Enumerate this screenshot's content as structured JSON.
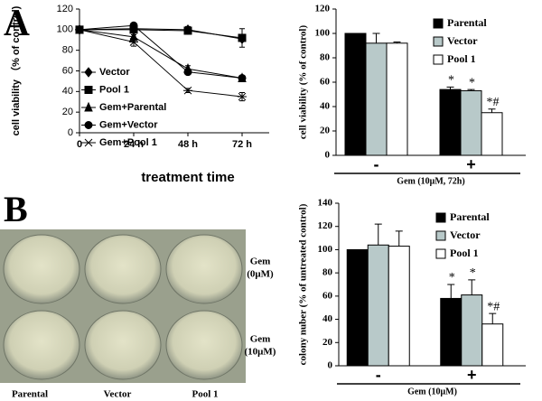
{
  "panel_labels": [
    "A",
    "B"
  ],
  "photo": {
    "column_labels": [
      "Parental",
      "Vector",
      "Pool 1"
    ],
    "row_labels": [
      [
        "Gem",
        "(0μM)"
      ],
      [
        "Gem",
        "(10μM)"
      ]
    ]
  },
  "chart_data": [
    {
      "type": "line",
      "xlabel": "treatment time",
      "ylabel": "cell viability （% of control)",
      "x": [
        0,
        24,
        48,
        72
      ],
      "xlim": [
        0,
        84
      ],
      "xticks": [
        0,
        {
          "value": 24,
          "label": "24 h"
        },
        {
          "value": 48,
          "label": "48 h"
        },
        {
          "value": 72,
          "label": "72 h"
        }
      ],
      "ylim": [
        0,
        120
      ],
      "yticks": [
        0,
        20,
        40,
        60,
        80,
        100,
        120
      ],
      "legend": "lower left",
      "series": [
        {
          "name": "Vector",
          "color": "#000000",
          "marker": "diamond",
          "values": [
            100,
            101,
            100,
            91
          ],
          "errors": [
            0,
            1,
            3,
            2
          ]
        },
        {
          "name": "Pool 1",
          "color": "#000000",
          "marker": "square",
          "values": [
            100,
            100,
            99,
            92
          ],
          "errors": [
            0,
            1,
            3,
            9
          ]
        },
        {
          "name": "Gem+Parental",
          "color": "#000000",
          "marker": "triangle",
          "values": [
            100,
            93,
            62,
            53
          ],
          "errors": [
            0,
            2,
            3,
            2
          ]
        },
        {
          "name": "Gem+Vector",
          "color": "#000000",
          "marker": "circle",
          "values": [
            100,
            104,
            59,
            53
          ],
          "errors": [
            0,
            2,
            2,
            1
          ]
        },
        {
          "name": "Gem+Pool 1",
          "color": "#000000",
          "marker": "asterisk",
          "values": [
            100,
            88,
            41,
            35
          ],
          "errors": [
            0,
            4,
            2,
            4
          ]
        }
      ]
    },
    {
      "type": "bar",
      "xlabel": "Gem (10μM, 72h)",
      "ylabel": "cell viability (% of control)",
      "categories": [
        "-",
        "+"
      ],
      "ylim": [
        0,
        120
      ],
      "yticks": [
        0,
        20,
        40,
        60,
        80,
        100,
        120
      ],
      "legend": "upper right",
      "annotations": [
        "*",
        "*",
        "*#"
      ],
      "series": [
        {
          "name": "Parental",
          "color": "#000000",
          "values": [
            100,
            54
          ],
          "errors": [
            0,
            2
          ]
        },
        {
          "name": "Vector",
          "color": "#b8c9c9",
          "values": [
            92,
            53
          ],
          "errors": [
            8,
            1
          ]
        },
        {
          "name": "Pool 1",
          "color": "#ffffff",
          "values": [
            92,
            35
          ],
          "errors": [
            1,
            3
          ]
        }
      ]
    },
    {
      "type": "bar",
      "xlabel": "Gem (10μM)",
      "ylabel": "colony nuber (% of untreated control)",
      "categories": [
        "-",
        "+"
      ],
      "ylim": [
        0,
        140
      ],
      "yticks": [
        0,
        20,
        40,
        60,
        80,
        100,
        120,
        140
      ],
      "legend": "upper right",
      "annotations": [
        "*",
        "*",
        "*#"
      ],
      "series": [
        {
          "name": "Parental",
          "color": "#000000",
          "values": [
            100,
            58
          ],
          "errors": [
            0,
            12
          ]
        },
        {
          "name": "Vector",
          "color": "#b8c9c9",
          "values": [
            104,
            61
          ],
          "errors": [
            18,
            13
          ]
        },
        {
          "name": "Pool 1",
          "color": "#ffffff",
          "values": [
            103,
            36
          ],
          "errors": [
            13,
            9
          ]
        }
      ]
    }
  ]
}
